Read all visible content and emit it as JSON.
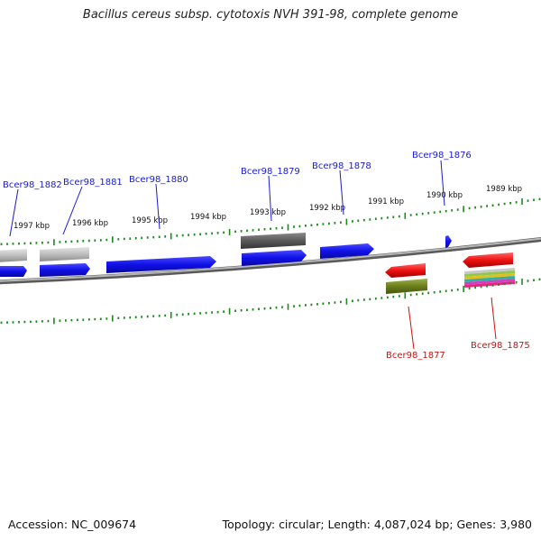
{
  "title": "Bacillus cereus subsp. cytotoxis NVH 391-98, complete genome",
  "footer": {
    "accession_label": "Accession:",
    "accession": "NC_009674",
    "topology_label": "Topology:",
    "topology": "circular",
    "length_label": "Length:",
    "length": "4,087,024 bp",
    "genes_label": "Genes:",
    "genes": "3,980"
  },
  "scale": {
    "unit": "kbp",
    "ticks": [
      "1997 kbp",
      "1996 kbp",
      "1995 kbp",
      "1994 kbp",
      "1993 kbp",
      "1992 kbp",
      "1991 kbp",
      "1990 kbp",
      "1989 kbp"
    ]
  },
  "genes": {
    "forward_labels": [
      "Bcer98_1882",
      "Bcer98_1881",
      "Bcer98_1880",
      "Bcer98_1879",
      "Bcer98_1878",
      "Bcer98_1876"
    ],
    "reverse_labels": [
      "Bcer98_1877",
      "Bcer98_1875"
    ]
  },
  "colors": {
    "forward_label": "#1a1ad4",
    "reverse_label": "#cc1111",
    "cds_forward": "#1010e8",
    "gene_gray": "#bdbdbd",
    "gene_dark": "#5a5a5a",
    "cds_reverse": "#ee1111",
    "olive": "#6b7f1c",
    "tick": "#1a8a1a",
    "backbone": "#8a8a8a"
  }
}
